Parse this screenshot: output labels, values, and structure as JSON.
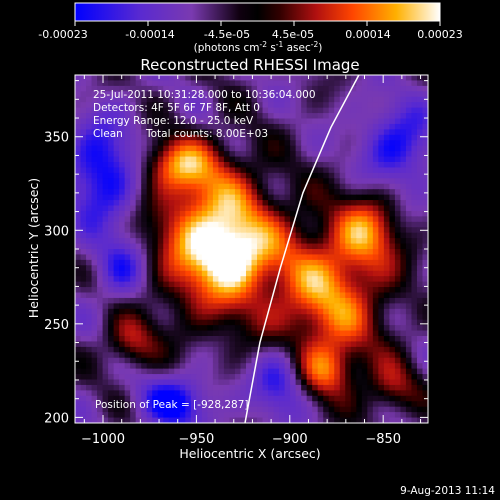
{
  "colorbar": {
    "ticks": [
      "-0.00023",
      "-0.00014",
      "-4.5e-05",
      "4.5e-05",
      "0.00014",
      "0.00023"
    ],
    "units_main": "(photons cm",
    "units_exp1": "-2",
    "units_mid": " s",
    "units_exp2": "-1",
    "units_tail": " asec",
    "units_exp3": "-2",
    "units_close": ")"
  },
  "plot": {
    "title": "Reconstructed RHESSI Image",
    "info_time": "25-Jul-2011 10:31:28.000 to 10:36:04.000",
    "info_detectors": "Detectors: 4F 5F 6F 7F 8F, Att 0",
    "info_energy": "Energy Range: 12.0 - 25.0 keV",
    "info_clean": "Clean",
    "info_counts": "Total counts: 8.00E+03",
    "peak_text": "Position of Peak = [-928,287]",
    "footer_date": "9-Aug-2013 11:14"
  },
  "chart_data": {
    "type": "heatmap",
    "title": "Reconstructed RHESSI Image",
    "xlabel": "Heliocentric X (arcsec)",
    "ylabel": "Heliocentric Y (arcsec)",
    "xlim": [
      -1015,
      -826
    ],
    "ylim": [
      197,
      383
    ],
    "x_ticks": [
      -1000,
      -950,
      -900,
      -850
    ],
    "y_ticks": [
      200,
      250,
      300,
      350
    ],
    "x_tick_labels": [
      "−1000",
      "−950",
      "−900",
      "−850"
    ],
    "y_tick_labels": [
      "200",
      "250",
      "300",
      "350"
    ],
    "color_range": [
      -0.00023,
      0.00023
    ],
    "colormap": [
      "#0000ff",
      "#6a2cc8",
      "#000000",
      "#b01010",
      "#ff4500",
      "#ffa500",
      "#ffffff"
    ],
    "peak_position": [
      -928,
      287
    ],
    "limb_curve": [
      [
        -924,
        197
      ],
      [
        -916,
        240
      ],
      [
        -905,
        280
      ],
      [
        -893,
        320
      ],
      [
        -878,
        355
      ],
      [
        -863,
        383
      ]
    ],
    "blobs": [
      {
        "x": -940,
        "y": 295,
        "sx": 22,
        "sy": 28,
        "amp": 1.0
      },
      {
        "x": -928,
        "y": 287,
        "sx": 12,
        "sy": 12,
        "amp": 0.35
      },
      {
        "x": -960,
        "y": 335,
        "sx": 14,
        "sy": 10,
        "amp": 0.6
      },
      {
        "x": -985,
        "y": 240,
        "sx": 10,
        "sy": 10,
        "amp": 0.45
      },
      {
        "x": -880,
        "y": 265,
        "sx": 22,
        "sy": 28,
        "amp": 0.75
      },
      {
        "x": -858,
        "y": 300,
        "sx": 12,
        "sy": 14,
        "amp": 0.55
      },
      {
        "x": -880,
        "y": 225,
        "sx": 10,
        "sy": 10,
        "amp": 0.5
      },
      {
        "x": -845,
        "y": 215,
        "sx": 10,
        "sy": 10,
        "amp": 0.4
      },
      {
        "x": -905,
        "y": 220,
        "sx": 10,
        "sy": 14,
        "amp": -0.5
      },
      {
        "x": -1000,
        "y": 330,
        "sx": 14,
        "sy": 20,
        "amp": -0.6
      },
      {
        "x": -960,
        "y": 208,
        "sx": 14,
        "sy": 10,
        "amp": -0.55
      },
      {
        "x": -842,
        "y": 345,
        "sx": 14,
        "sy": 16,
        "amp": -0.5
      },
      {
        "x": -990,
        "y": 280,
        "sx": 10,
        "sy": 12,
        "amp": -0.4
      }
    ]
  }
}
